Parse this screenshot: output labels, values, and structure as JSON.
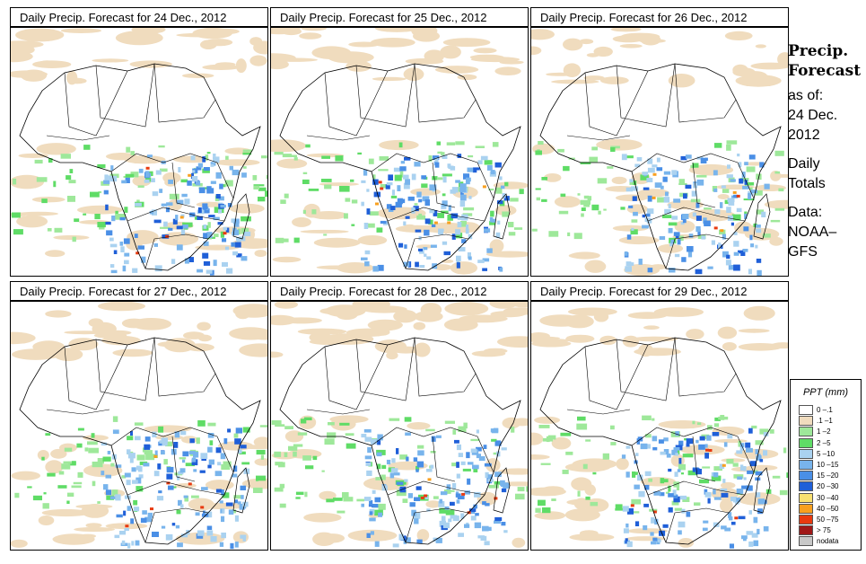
{
  "panels": [
    {
      "title": "Daily Precip. Forecast for  24 Dec., 2012"
    },
    {
      "title": "Daily Precip. Forecast for  25 Dec., 2012"
    },
    {
      "title": "Daily Precip. Forecast for  26 Dec., 2012"
    },
    {
      "title": "Daily Precip. Forecast for  27 Dec., 2012"
    },
    {
      "title": "Daily Precip. Forecast for  28 Dec., 2012"
    },
    {
      "title": "Daily Precip. Forecast for  29 Dec., 2012"
    }
  ],
  "side": {
    "title_1": "Precip.",
    "title_2": "Forecast",
    "asof_1": "as of:",
    "asof_2": "24 Dec.",
    "asof_3": "2012",
    "totals_1": "Daily",
    "totals_2": "Totals",
    "data_1": "Data:",
    "data_2": "NOAA–",
    "data_3": "GFS"
  },
  "legend": {
    "title": "PPT (mm)",
    "items": [
      {
        "label": "0 –.1",
        "color": "#ffffff"
      },
      {
        "label": ".1 –1",
        "color": "#f0dcbe"
      },
      {
        "label": "1 –2",
        "color": "#9ee89a"
      },
      {
        "label": "2 –5",
        "color": "#5fdc66"
      },
      {
        "label": "5 –10",
        "color": "#aad2f0"
      },
      {
        "label": "10 –15",
        "color": "#78b4ec"
      },
      {
        "label": "15 –20",
        "color": "#4a8fe6"
      },
      {
        "label": "20 –30",
        "color": "#1f5fd8"
      },
      {
        "label": "30 –40",
        "color": "#f8e070"
      },
      {
        "label": "40 –50",
        "color": "#f8a020"
      },
      {
        "label": "50 –75",
        "color": "#e83a10"
      },
      {
        "label": "> 75",
        "color": "#a01818"
      },
      {
        "label": "nodata",
        "color": "#c8c8c8"
      }
    ]
  }
}
